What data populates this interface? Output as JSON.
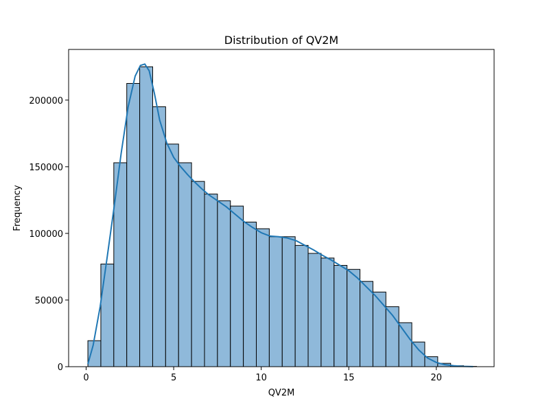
{
  "chart_data": {
    "type": "bar",
    "title": "Distribution of QV2M",
    "xlabel": "QV2M",
    "ylabel": "Frequency",
    "xlim": [
      -1.0,
      23.3
    ],
    "ylim": [
      0,
      238000
    ],
    "xticks": [
      0,
      5,
      10,
      15,
      20
    ],
    "xtick_labels": [
      "0",
      "5",
      "10",
      "15",
      "20"
    ],
    "yticks": [
      0,
      50000,
      100000,
      150000,
      200000
    ],
    "ytick_labels": [
      "0",
      "50000",
      "100000",
      "150000",
      "200000"
    ],
    "grid": false,
    "bar_color": "#8fb9da",
    "bar_edge_color": "#000000",
    "kde_color": "#1f77b4",
    "bins": [
      {
        "start": 0.1,
        "end": 0.84,
        "value": 19500
      },
      {
        "start": 0.84,
        "end": 1.58,
        "value": 77000
      },
      {
        "start": 1.58,
        "end": 2.32,
        "value": 153000
      },
      {
        "start": 2.32,
        "end": 3.06,
        "value": 212500
      },
      {
        "start": 3.06,
        "end": 3.8,
        "value": 225000
      },
      {
        "start": 3.8,
        "end": 4.54,
        "value": 195000
      },
      {
        "start": 4.54,
        "end": 5.28,
        "value": 167000
      },
      {
        "start": 5.28,
        "end": 6.02,
        "value": 153000
      },
      {
        "start": 6.02,
        "end": 6.76,
        "value": 139000
      },
      {
        "start": 6.76,
        "end": 7.5,
        "value": 129500
      },
      {
        "start": 7.5,
        "end": 8.24,
        "value": 124500
      },
      {
        "start": 8.24,
        "end": 8.98,
        "value": 120500
      },
      {
        "start": 8.98,
        "end": 9.72,
        "value": 108500
      },
      {
        "start": 9.72,
        "end": 10.46,
        "value": 103500
      },
      {
        "start": 10.46,
        "end": 11.2,
        "value": 97500
      },
      {
        "start": 11.2,
        "end": 11.94,
        "value": 97500
      },
      {
        "start": 11.94,
        "end": 12.68,
        "value": 91000
      },
      {
        "start": 12.68,
        "end": 13.42,
        "value": 85000
      },
      {
        "start": 13.42,
        "end": 14.16,
        "value": 81500
      },
      {
        "start": 14.16,
        "end": 14.9,
        "value": 76000
      },
      {
        "start": 14.9,
        "end": 15.64,
        "value": 73000
      },
      {
        "start": 15.64,
        "end": 16.38,
        "value": 64000
      },
      {
        "start": 16.38,
        "end": 17.12,
        "value": 56000
      },
      {
        "start": 17.12,
        "end": 17.86,
        "value": 45000
      },
      {
        "start": 17.86,
        "end": 18.6,
        "value": 33000
      },
      {
        "start": 18.6,
        "end": 19.34,
        "value": 18500
      },
      {
        "start": 19.34,
        "end": 20.08,
        "value": 7500
      },
      {
        "start": 20.08,
        "end": 20.82,
        "value": 2500
      },
      {
        "start": 20.82,
        "end": 21.56,
        "value": 700
      },
      {
        "start": 21.56,
        "end": 22.3,
        "value": 200
      }
    ],
    "kde": {
      "x": [
        0.1,
        0.4,
        0.8,
        1.2,
        1.6,
        2.0,
        2.4,
        2.8,
        3.1,
        3.35,
        3.6,
        3.9,
        4.2,
        4.6,
        5.0,
        5.4,
        5.8,
        6.2,
        6.6,
        7.0,
        7.5,
        8.0,
        8.5,
        9.0,
        9.5,
        10.0,
        10.5,
        11.0,
        11.5,
        12.0,
        12.5,
        13.0,
        13.5,
        14.0,
        14.5,
        15.0,
        15.5,
        16.0,
        16.5,
        17.0,
        17.5,
        18.0,
        18.5,
        19.0,
        19.5,
        20.0,
        20.5,
        21.0,
        21.5,
        22.1
      ],
      "y": [
        2000,
        16000,
        45000,
        82000,
        120000,
        160000,
        195000,
        218000,
        226000,
        227000,
        222000,
        205000,
        185000,
        168000,
        157000,
        150000,
        144000,
        138500,
        133500,
        129000,
        124500,
        120000,
        114500,
        109000,
        104500,
        100500,
        98000,
        97500,
        96500,
        94500,
        91000,
        87500,
        83500,
        80000,
        76000,
        72000,
        66500,
        60000,
        53500,
        46000,
        38500,
        29500,
        20500,
        12500,
        6500,
        3200,
        1500,
        700,
        250,
        50
      ]
    }
  }
}
